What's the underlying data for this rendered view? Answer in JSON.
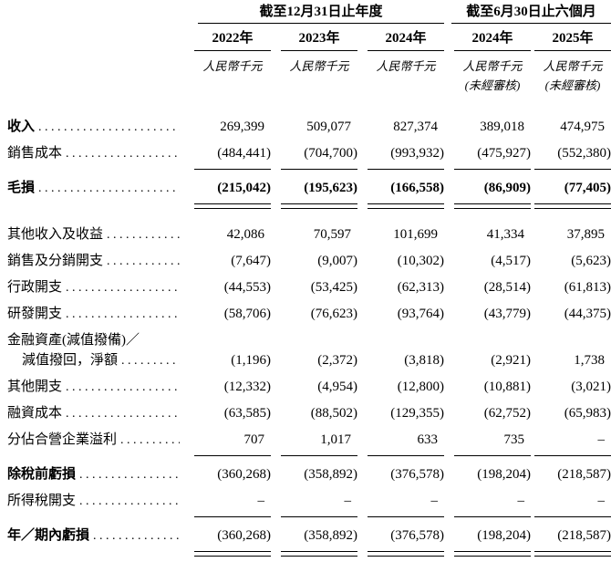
{
  "colors": {
    "text": "#000000",
    "rule": "#000000",
    "background": "#ffffff"
  },
  "table": {
    "groups": [
      {
        "label": "截至12月31日止年度",
        "span": 3
      },
      {
        "label": "截至6月30日止六個月",
        "span": 2
      }
    ],
    "columns": [
      {
        "year": "2022年",
        "unit": "人民幣千元",
        "note": ""
      },
      {
        "year": "2023年",
        "unit": "人民幣千元",
        "note": ""
      },
      {
        "year": "2024年",
        "unit": "人民幣千元",
        "note": ""
      },
      {
        "year": "2024年",
        "unit": "人民幣千元",
        "note": "(未經審核)"
      },
      {
        "year": "2025年",
        "unit": "人民幣千元",
        "note": "(未經審核)"
      }
    ],
    "rows": [
      {
        "label": "收入",
        "bold_label": true,
        "bold_values": false,
        "leader": true,
        "indent": false,
        "rule": "none",
        "values": [
          "269,399",
          "509,077",
          "827,374",
          "389,018",
          "474,975"
        ]
      },
      {
        "label": "銷售成本",
        "bold_label": false,
        "bold_values": false,
        "leader": true,
        "indent": false,
        "rule": "single",
        "values": [
          "(484,441)",
          "(704,700)",
          "(993,932)",
          "(475,927)",
          "(552,380)"
        ]
      },
      {
        "label": "毛損",
        "bold_label": true,
        "bold_values": true,
        "leader": true,
        "indent": false,
        "rule": "double",
        "gap_after": true,
        "values": [
          "(215,042)",
          "(195,623)",
          "(166,558)",
          "(86,909)",
          "(77,405)"
        ]
      },
      {
        "label": "其他收入及收益",
        "bold_label": false,
        "bold_values": false,
        "leader": true,
        "indent": false,
        "rule": "none",
        "values": [
          "42,086",
          "70,597",
          "101,699",
          "41,334",
          "37,895"
        ]
      },
      {
        "label": "銷售及分銷開支",
        "bold_label": false,
        "bold_values": false,
        "leader": true,
        "indent": false,
        "rule": "none",
        "values": [
          "(7,647)",
          "(9,007)",
          "(10,302)",
          "(4,517)",
          "(5,623)"
        ]
      },
      {
        "label": "行政開支",
        "bold_label": false,
        "bold_values": false,
        "leader": true,
        "indent": false,
        "rule": "none",
        "values": [
          "(44,553)",
          "(53,425)",
          "(62,313)",
          "(28,514)",
          "(61,813)"
        ]
      },
      {
        "label": "研發開支",
        "bold_label": false,
        "bold_values": false,
        "leader": true,
        "indent": false,
        "rule": "none",
        "values": [
          "(58,706)",
          "(76,623)",
          "(93,764)",
          "(43,779)",
          "(44,375)"
        ]
      },
      {
        "label": "金融資產(減值撥備)／",
        "bold_label": false,
        "bold_values": false,
        "leader": false,
        "indent": false,
        "rule": "none",
        "values": null
      },
      {
        "label": "減值撥回，淨額",
        "bold_label": false,
        "bold_values": false,
        "leader": true,
        "indent": true,
        "rule": "none",
        "values": [
          "(1,196)",
          "(2,372)",
          "(3,818)",
          "(2,921)",
          "1,738"
        ]
      },
      {
        "label": "其他開支",
        "bold_label": false,
        "bold_values": false,
        "leader": true,
        "indent": false,
        "rule": "none",
        "values": [
          "(12,332)",
          "(4,954)",
          "(12,800)",
          "(10,881)",
          "(3,021)"
        ]
      },
      {
        "label": "融資成本",
        "bold_label": false,
        "bold_values": false,
        "leader": true,
        "indent": false,
        "rule": "none",
        "values": [
          "(63,585)",
          "(88,502)",
          "(129,355)",
          "(62,752)",
          "(65,983)"
        ]
      },
      {
        "label": "分佔合營企業溢利",
        "bold_label": false,
        "bold_values": false,
        "leader": true,
        "indent": false,
        "rule": "single",
        "values": [
          "707",
          "1,017",
          "633",
          "735",
          "–"
        ]
      },
      {
        "label": "除稅前虧損",
        "bold_label": true,
        "bold_values": false,
        "leader": true,
        "indent": false,
        "rule": "none",
        "values": [
          "(360,268)",
          "(358,892)",
          "(376,578)",
          "(198,204)",
          "(218,587)"
        ]
      },
      {
        "label": "所得稅開支",
        "bold_label": false,
        "bold_values": false,
        "leader": true,
        "indent": false,
        "rule": "single",
        "values": [
          "–",
          "–",
          "–",
          "–",
          "–"
        ]
      },
      {
        "label": "年／期內虧損",
        "bold_label": true,
        "bold_values": false,
        "leader": true,
        "indent": false,
        "rule": "double",
        "values": [
          "(360,268)",
          "(358,892)",
          "(376,578)",
          "(198,204)",
          "(218,587)"
        ]
      }
    ]
  }
}
